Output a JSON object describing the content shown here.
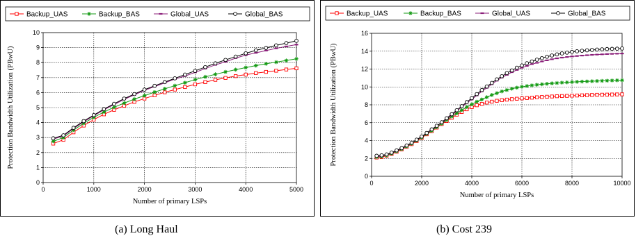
{
  "captions": [
    "(a) Long Haul",
    "(b) Cost 239"
  ],
  "colors": {
    "Backup_UAS": "#ff0000",
    "Backup_BAS": "#139a13",
    "Global_UAS": "#8b1f7a",
    "Global_BAS": "#000000"
  },
  "chart_data": [
    {
      "type": "line",
      "title": "",
      "xlabel": "Number of primary LSPs",
      "ylabel": "Protection Bandwidth Utilization (PBwU)",
      "xlim": [
        0,
        5000
      ],
      "ylim": [
        0,
        10
      ],
      "xticks": [
        0,
        1000,
        2000,
        3000,
        4000,
        5000
      ],
      "yticks": [
        0,
        1,
        2,
        3,
        4,
        5,
        6,
        7,
        8,
        9,
        10
      ],
      "grid": true,
      "legend": "top",
      "x": [
        200,
        400,
        600,
        800,
        1000,
        1200,
        1400,
        1600,
        1800,
        2000,
        2200,
        2400,
        2600,
        2800,
        3000,
        3200,
        3400,
        3600,
        3800,
        4000,
        4200,
        4400,
        4600,
        4800,
        5000
      ],
      "series": [
        {
          "name": "Backup_UAS",
          "marker": "square-open",
          "values": [
            2.6,
            2.85,
            3.35,
            3.8,
            4.2,
            4.55,
            4.85,
            5.12,
            5.38,
            5.6,
            5.82,
            6.02,
            6.2,
            6.37,
            6.55,
            6.7,
            6.85,
            6.98,
            7.1,
            7.2,
            7.3,
            7.38,
            7.46,
            7.54,
            7.62
          ]
        },
        {
          "name": "Backup_BAS",
          "marker": "star",
          "values": [
            2.75,
            3.0,
            3.5,
            3.95,
            4.35,
            4.7,
            5.02,
            5.3,
            5.56,
            5.8,
            6.03,
            6.25,
            6.46,
            6.66,
            6.86,
            7.05,
            7.22,
            7.38,
            7.53,
            7.67,
            7.8,
            7.92,
            8.03,
            8.14,
            8.25
          ]
        },
        {
          "name": "Global_UAS",
          "marker": "dash",
          "values": [
            2.9,
            3.1,
            3.6,
            4.05,
            4.45,
            4.85,
            5.2,
            5.55,
            5.85,
            6.15,
            6.4,
            6.65,
            6.9,
            7.1,
            7.35,
            7.6,
            7.85,
            8.05,
            8.3,
            8.5,
            8.65,
            8.8,
            8.95,
            9.08,
            9.2
          ]
        },
        {
          "name": "Global_BAS",
          "marker": "circle-open",
          "values": [
            2.95,
            3.15,
            3.65,
            4.1,
            4.5,
            4.9,
            5.25,
            5.6,
            5.9,
            6.2,
            6.45,
            6.7,
            6.95,
            7.2,
            7.45,
            7.7,
            7.95,
            8.18,
            8.4,
            8.62,
            8.82,
            8.98,
            9.15,
            9.3,
            9.45
          ]
        }
      ]
    },
    {
      "type": "line",
      "title": "",
      "xlabel": "Number of primary LSPs",
      "ylabel": "Protection Bandwidth Utilization (PBwU)",
      "xlim": [
        0,
        10000
      ],
      "ylim": [
        0,
        16
      ],
      "xticks": [
        0,
        2000,
        4000,
        6000,
        8000,
        10000
      ],
      "yticks": [
        0,
        2,
        4,
        6,
        8,
        10,
        12,
        14,
        16
      ],
      "grid": true,
      "legend": "top",
      "x": [
        200,
        400,
        600,
        800,
        1000,
        1200,
        1400,
        1600,
        1800,
        2000,
        2200,
        2400,
        2600,
        2800,
        3000,
        3200,
        3400,
        3600,
        3800,
        4000,
        4200,
        4400,
        4600,
        4800,
        5000,
        5200,
        5400,
        5600,
        5800,
        6000,
        6200,
        6400,
        6600,
        6800,
        7000,
        7200,
        7400,
        7600,
        7800,
        8000,
        8200,
        8400,
        8600,
        8800,
        9000,
        9200,
        9400,
        9600,
        9800,
        10000
      ],
      "series": [
        {
          "name": "Backup_UAS",
          "marker": "square-open",
          "values": [
            2.1,
            2.15,
            2.3,
            2.5,
            2.75,
            3.0,
            3.3,
            3.6,
            3.95,
            4.3,
            4.7,
            5.05,
            5.45,
            5.85,
            6.2,
            6.55,
            6.9,
            7.2,
            7.5,
            7.75,
            7.95,
            8.1,
            8.25,
            8.35,
            8.45,
            8.52,
            8.58,
            8.63,
            8.68,
            8.72,
            8.76,
            8.8,
            8.84,
            8.87,
            8.9,
            8.93,
            8.96,
            8.98,
            9.0,
            9.02,
            9.04,
            9.06,
            9.08,
            9.1,
            9.12,
            9.13,
            9.14,
            9.15,
            9.16,
            9.17
          ]
        },
        {
          "name": "Backup_BAS",
          "marker": "star",
          "values": [
            2.15,
            2.2,
            2.35,
            2.55,
            2.8,
            3.05,
            3.35,
            3.65,
            4.0,
            4.35,
            4.75,
            5.1,
            5.5,
            5.9,
            6.3,
            6.7,
            7.05,
            7.4,
            7.75,
            8.05,
            8.35,
            8.6,
            8.85,
            9.1,
            9.3,
            9.5,
            9.65,
            9.8,
            9.92,
            10.02,
            10.1,
            10.18,
            10.24,
            10.3,
            10.35,
            10.4,
            10.44,
            10.48,
            10.51,
            10.54,
            10.57,
            10.6,
            10.62,
            10.64,
            10.66,
            10.68,
            10.7,
            10.72,
            10.74,
            10.75
          ]
        },
        {
          "name": "Global_UAS",
          "marker": "dash",
          "values": [
            2.2,
            2.25,
            2.4,
            2.6,
            2.85,
            3.1,
            3.4,
            3.7,
            4.05,
            4.4,
            4.8,
            5.2,
            5.6,
            6.0,
            6.4,
            6.85,
            7.3,
            7.75,
            8.2,
            8.6,
            9.05,
            9.5,
            9.9,
            10.3,
            10.7,
            11.05,
            11.35,
            11.65,
            11.9,
            12.15,
            12.35,
            12.55,
            12.7,
            12.85,
            12.98,
            13.1,
            13.2,
            13.28,
            13.35,
            13.41,
            13.46,
            13.51,
            13.55,
            13.59,
            13.62,
            13.65,
            13.68,
            13.7,
            13.72,
            13.74
          ]
        },
        {
          "name": "Global_BAS",
          "marker": "circle-open",
          "values": [
            2.3,
            2.35,
            2.45,
            2.65,
            2.9,
            3.15,
            3.45,
            3.75,
            4.1,
            4.45,
            4.85,
            5.25,
            5.65,
            6.05,
            6.5,
            6.95,
            7.4,
            7.85,
            8.3,
            8.75,
            9.2,
            9.65,
            10.05,
            10.45,
            10.85,
            11.2,
            11.55,
            11.85,
            12.15,
            12.4,
            12.65,
            12.85,
            13.05,
            13.22,
            13.38,
            13.52,
            13.64,
            13.75,
            13.84,
            13.92,
            13.99,
            14.05,
            14.1,
            14.14,
            14.18,
            14.21,
            14.24,
            14.26,
            14.28,
            14.3
          ]
        }
      ]
    }
  ]
}
